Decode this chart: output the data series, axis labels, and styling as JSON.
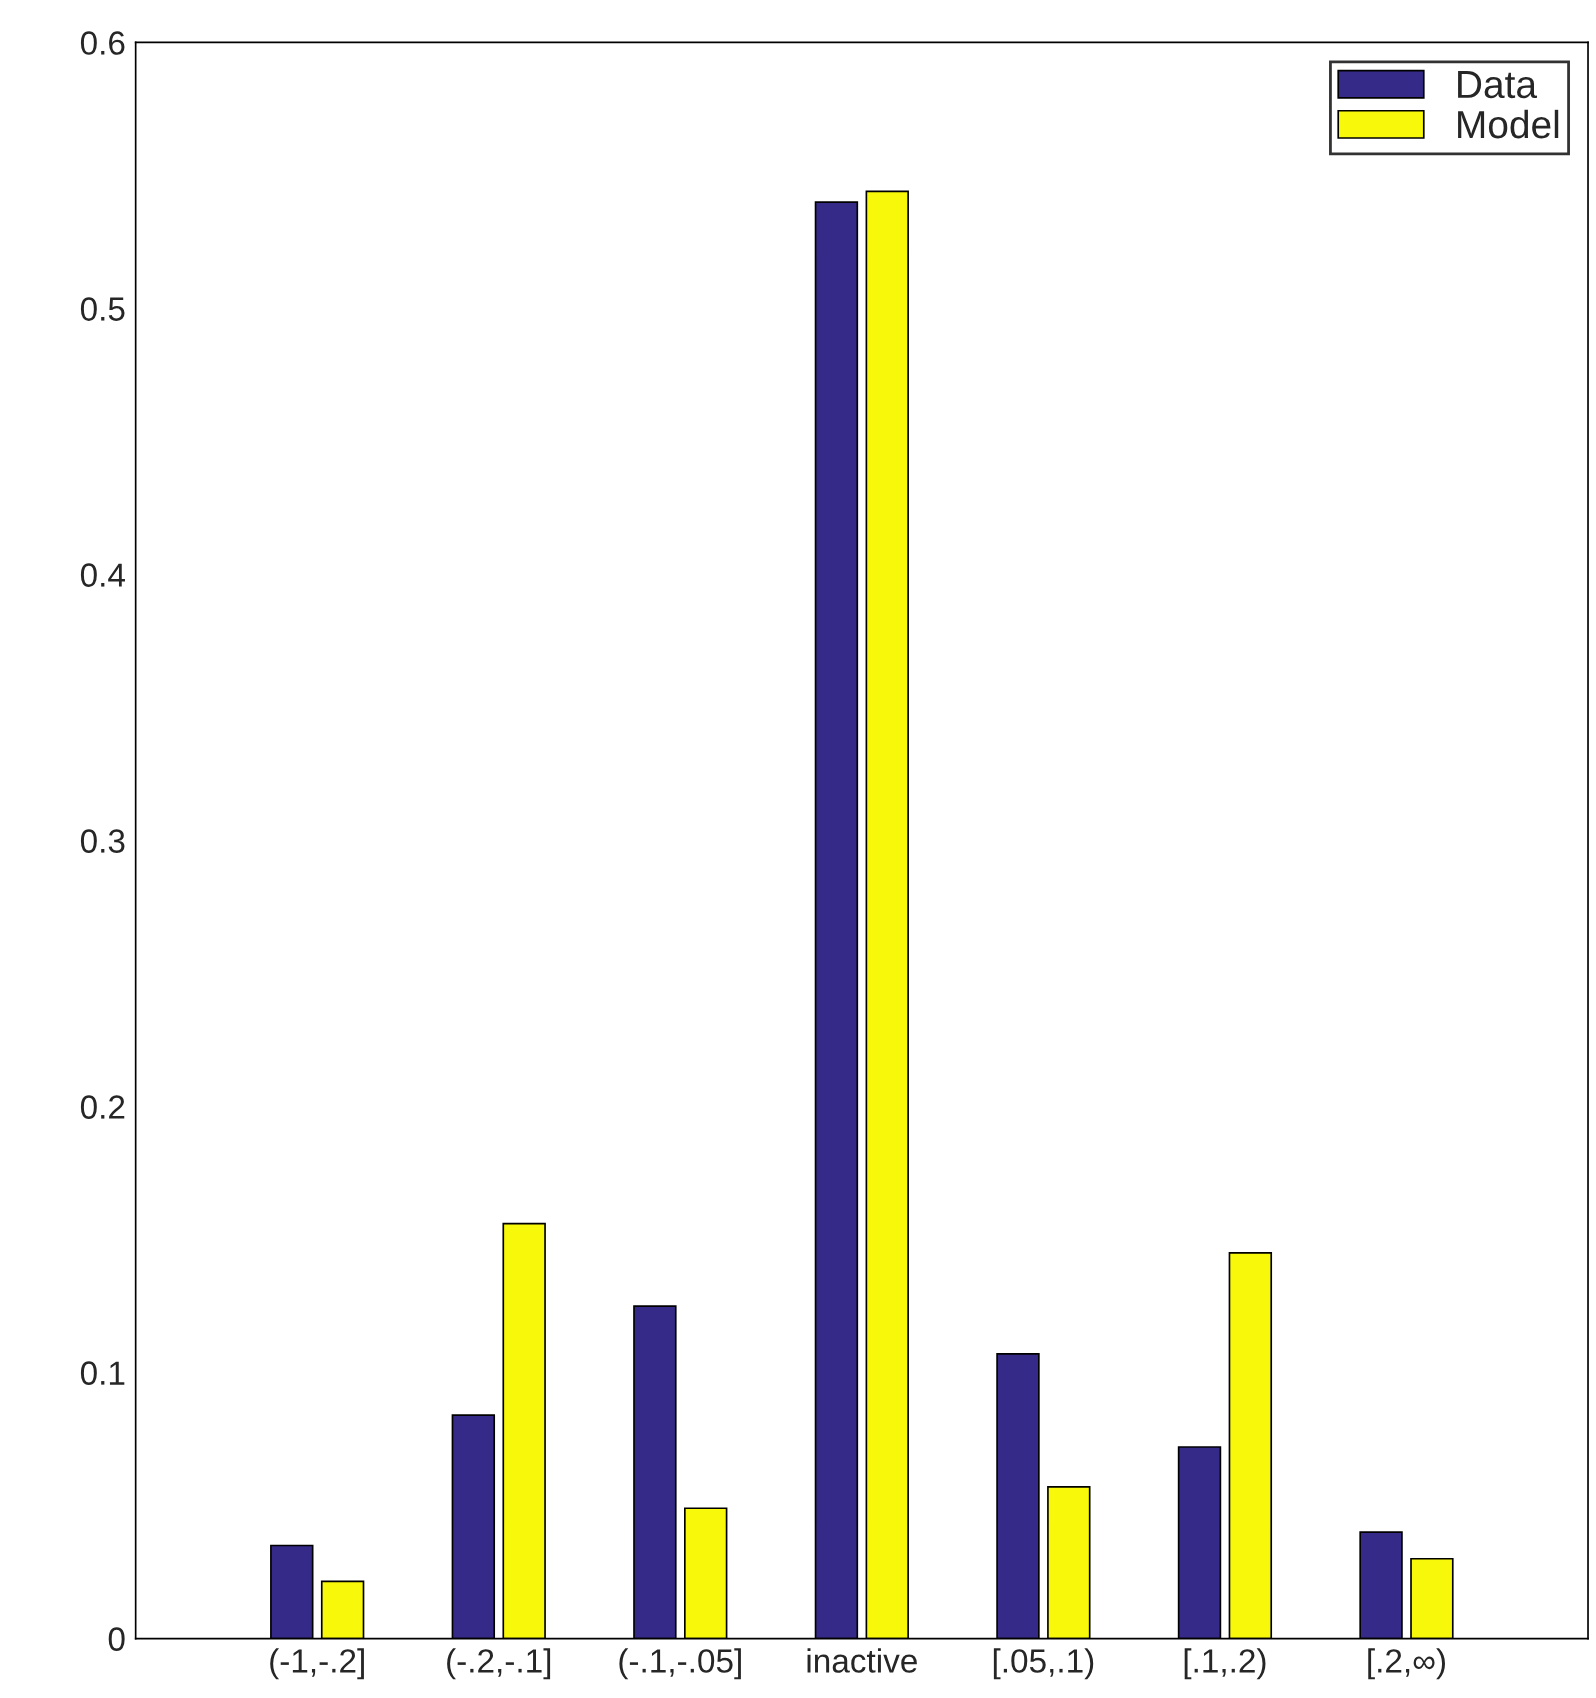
{
  "chart_data": {
    "type": "bar",
    "categories": [
      "(-1,-.2]",
      "(-.2,-.1]",
      "(-.1,-.05]",
      "inactive",
      "[.05,.1)",
      "[.1,.2)",
      "[.2,∞)"
    ],
    "series": [
      {
        "name": "Data",
        "color": "#352a87",
        "values": [
          0.035,
          0.084,
          0.125,
          0.54,
          0.107,
          0.072,
          0.04
        ]
      },
      {
        "name": "Model",
        "color": "#f8f80a",
        "values": [
          0.0215,
          0.156,
          0.049,
          0.544,
          0.057,
          0.145,
          0.03
        ]
      }
    ],
    "ylim": [
      0,
      0.6
    ],
    "yticks": [
      0,
      0.1,
      0.2,
      0.3,
      0.4,
      0.5,
      0.6
    ],
    "grid": false,
    "legend": "top right"
  }
}
